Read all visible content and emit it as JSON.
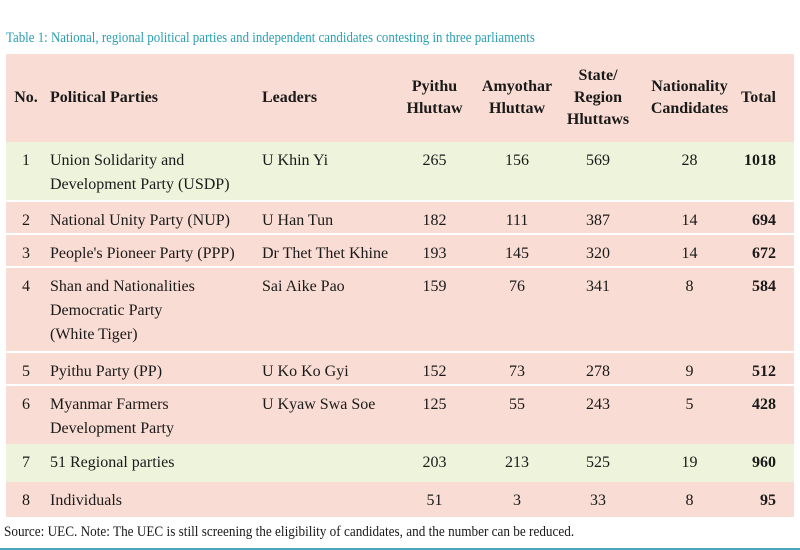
{
  "title": "Table 1: National, regional political parties and independent candidates contesting in three parliaments",
  "headers": {
    "no": "No.",
    "party": "Political Parties",
    "leaders": "Leaders",
    "pyithu": [
      "Pyithu",
      "Hluttaw"
    ],
    "amyothar": [
      "Amyothar",
      "Hluttaw"
    ],
    "state": [
      "State/",
      "Region",
      "Hluttaws"
    ],
    "nationality": [
      "Nationality",
      "Candidates"
    ],
    "total": "Total"
  },
  "rows": [
    {
      "no": "1",
      "party": [
        "Union Solidarity and",
        "Development Party (USDP)"
      ],
      "leader": "U Khin Yi",
      "pyithu": "265",
      "amyothar": "156",
      "state": "569",
      "nationality": "28",
      "total": "1018"
    },
    {
      "no": "2",
      "party": [
        "National Unity Party (NUP)"
      ],
      "leader": "U Han Tun",
      "pyithu": "182",
      "amyothar": "111",
      "state": "387",
      "nationality": "14",
      "total": "694"
    },
    {
      "no": "3",
      "party": [
        "People's Pioneer Party (PPP)"
      ],
      "leader": "Dr Thet Thet Khine",
      "pyithu": "193",
      "amyothar": "145",
      "state": "320",
      "nationality": "14",
      "total": "672"
    },
    {
      "no": "4",
      "party": [
        "Shan and Nationalities",
        "Democratic Party",
        "(White Tiger)"
      ],
      "leader": "Sai Aike Pao",
      "pyithu": "159",
      "amyothar": "76",
      "state": "341",
      "nationality": "8",
      "total": "584"
    },
    {
      "no": "5",
      "party": [
        "Pyithu Party (PP)"
      ],
      "leader": "U Ko Ko Gyi",
      "pyithu": "152",
      "amyothar": "73",
      "state": "278",
      "nationality": "9",
      "total": "512"
    },
    {
      "no": "6",
      "party": [
        "Myanmar Farmers",
        "Development Party"
      ],
      "leader": "U Kyaw Swa Soe",
      "pyithu": "125",
      "amyothar": "55",
      "state": "243",
      "nationality": "5",
      "total": "428"
    },
    {
      "no": "7",
      "party": [
        "51 Regional parties"
      ],
      "leader": "",
      "pyithu": "203",
      "amyothar": "213",
      "state": "525",
      "nationality": "19",
      "total": "960"
    },
    {
      "no": "8",
      "party": [
        "Individuals"
      ],
      "leader": "",
      "pyithu": "51",
      "amyothar": "3",
      "state": "33",
      "nationality": "8",
      "total": "95"
    }
  ],
  "source": "Source: UEC. Note: The UEC is still screening the eligibility of candidates, and the number can be reduced.",
  "colors": {
    "title": "#2a9fb3",
    "row_green": "#eef3dc",
    "row_pink": "#f9dcd3",
    "rule": "#4aa7b8"
  }
}
